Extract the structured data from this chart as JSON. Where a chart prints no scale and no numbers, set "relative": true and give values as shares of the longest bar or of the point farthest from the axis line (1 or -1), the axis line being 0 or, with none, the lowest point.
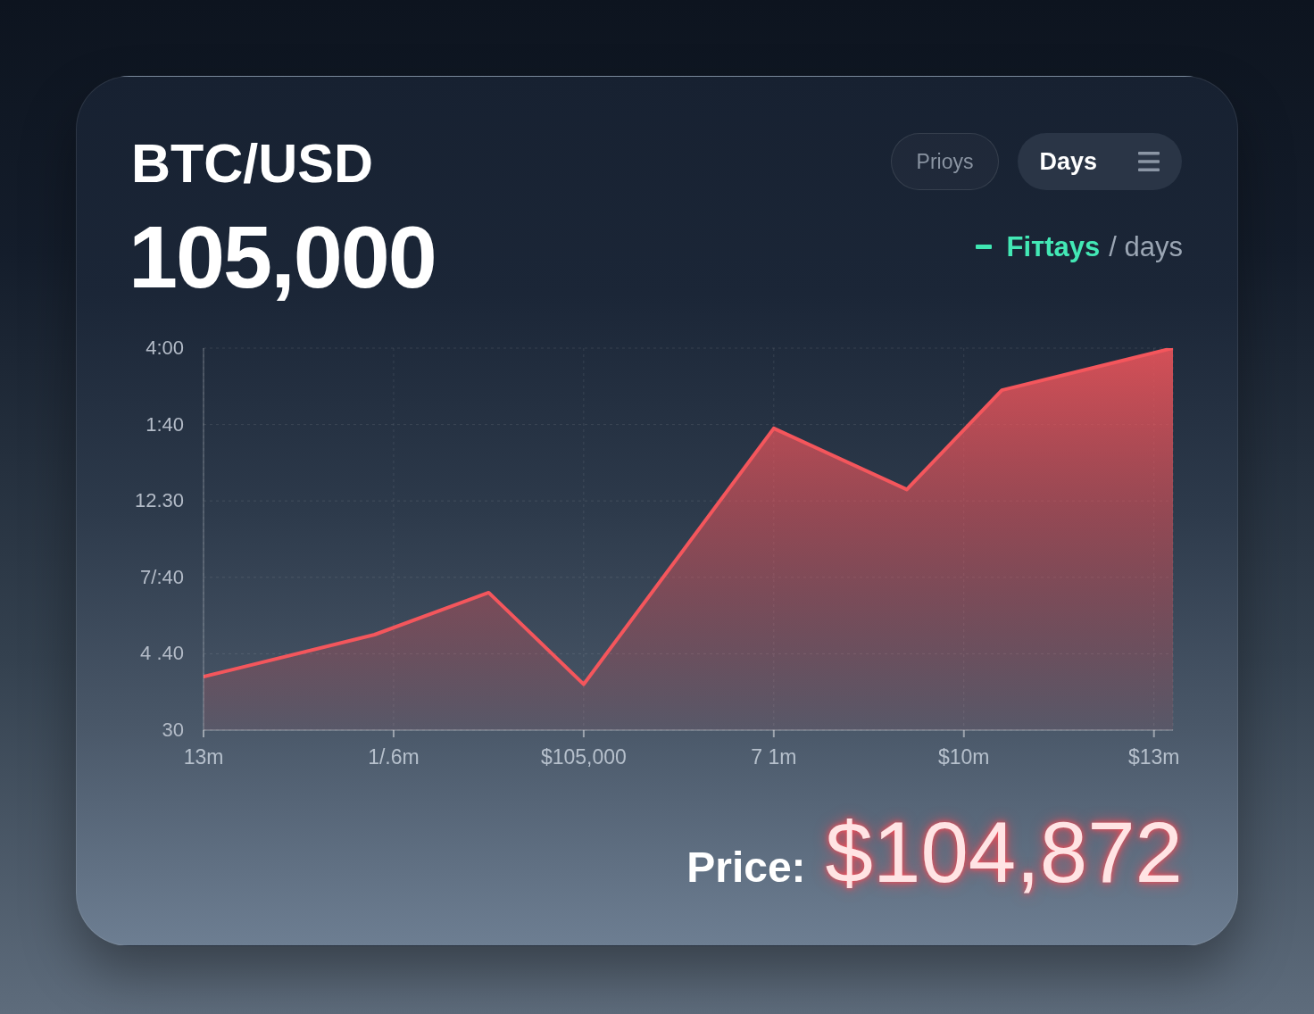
{
  "chart_data": {
    "type": "area",
    "title": "BTC/USD",
    "subtitle": "105,000",
    "annotations": [
      "Prioys",
      "Days",
      "Fiтtays",
      "/ days",
      "4:00",
      "1:40",
      "12.30",
      "7/:40",
      "4 .40",
      "30",
      "Price:",
      "$104,872"
    ],
    "categories": [
      "13m",
      null,
      null,
      null,
      null,
      null,
      null,
      null,
      null,
      null,
      "1/.6m",
      null,
      null,
      null,
      null,
      null,
      null,
      null,
      null,
      null,
      "$105,000",
      null,
      null,
      null,
      null,
      null,
      null,
      null,
      null,
      null,
      "7 1m",
      null,
      null,
      null,
      null,
      null,
      null,
      null,
      null,
      null,
      "$10m",
      null,
      null,
      null,
      null,
      null,
      null,
      null,
      null,
      null,
      "$13m",
      null
    ],
    "series": [
      {
        "color": "#f4565c",
        "values": [
          0.14,
          null,
          null,
          null,
          null,
          null,
          null,
          null,
          null,
          0.25,
          null,
          null,
          null,
          null,
          null,
          0.36,
          null,
          null,
          null,
          null,
          0.12,
          null,
          null,
          null,
          null,
          null,
          null,
          null,
          null,
          null,
          0.79,
          null,
          null,
          null,
          null,
          null,
          null,
          0.63,
          null,
          null,
          null,
          null,
          0.89,
          null,
          null,
          null,
          null,
          null,
          null,
          null,
          null,
          1
        ]
      }
    ],
    "relative": true,
    "grid": true
  }
}
